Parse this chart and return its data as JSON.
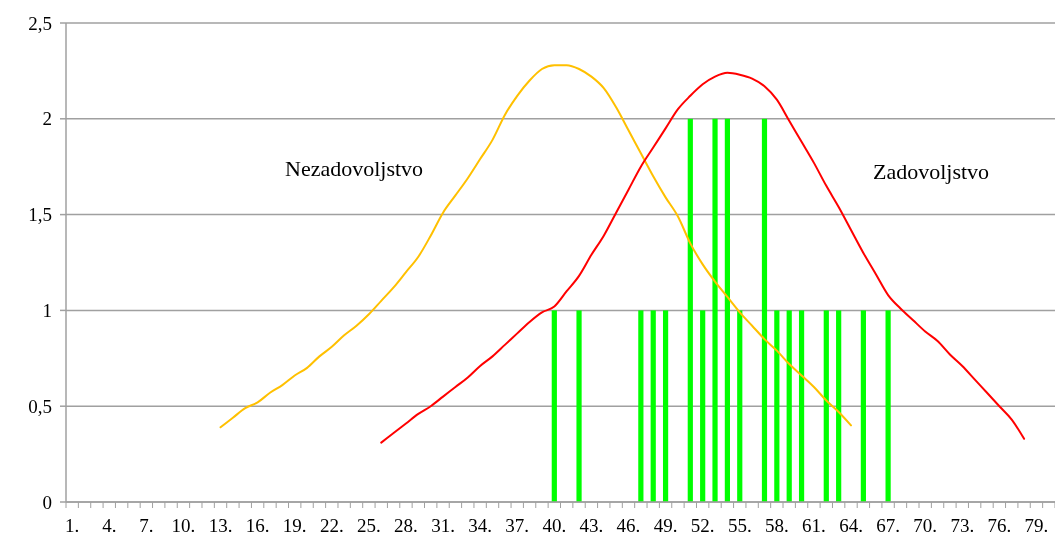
{
  "chart_data": {
    "type": "bar",
    "categories": [
      "1.",
      null,
      null,
      "4.",
      null,
      null,
      "7.",
      null,
      null,
      "10.",
      null,
      null,
      "13.",
      null,
      null,
      "16.",
      null,
      null,
      "19.",
      null,
      null,
      "22.",
      null,
      null,
      "25.",
      null,
      null,
      "28.",
      null,
      null,
      "31.",
      null,
      null,
      "34.",
      null,
      null,
      "37.",
      null,
      null,
      "40.",
      null,
      null,
      "43.",
      null,
      null,
      "46.",
      null,
      null,
      "49.",
      null,
      null,
      "52.",
      null,
      null,
      "55.",
      null,
      null,
      "58.",
      null,
      null,
      "61.",
      null,
      null,
      "64.",
      null,
      null,
      "67.",
      null,
      null,
      "70.",
      null,
      null,
      "73.",
      null,
      null,
      "76.",
      null,
      null,
      "79.",
      null
    ],
    "series": [
      {
        "color": "#00ff00",
        "values": [
          null,
          null,
          null,
          null,
          null,
          null,
          null,
          null,
          null,
          null,
          null,
          null,
          null,
          null,
          null,
          null,
          null,
          null,
          null,
          null,
          null,
          null,
          null,
          null,
          null,
          null,
          null,
          null,
          null,
          null,
          null,
          null,
          null,
          null,
          null,
          null,
          null,
          null,
          null,
          1,
          null,
          1,
          null,
          null,
          null,
          null,
          1,
          1,
          1,
          null,
          2,
          1,
          2,
          2,
          1,
          null,
          2,
          1,
          1,
          1,
          null,
          1,
          1,
          null,
          1,
          null,
          1,
          null,
          null,
          null,
          null,
          null,
          null,
          null,
          null,
          null,
          null,
          null,
          null,
          null
        ]
      },
      {
        "type": "line",
        "name": "Nezadovoljstvo",
        "color": "#ffc000",
        "values": [
          null,
          null,
          null,
          null,
          null,
          null,
          null,
          null,
          null,
          null,
          null,
          null,
          0.39,
          0.44,
          0.49,
          0.52,
          0.57,
          0.61,
          0.66,
          0.7,
          0.76,
          0.81,
          0.87,
          0.92,
          0.98,
          1.05,
          1.12,
          1.2,
          1.28,
          1.39,
          1.51,
          1.6,
          1.69,
          1.79,
          1.89,
          2.02,
          2.12,
          2.2,
          2.26,
          2.28,
          2.28,
          2.26,
          2.22,
          2.16,
          2.06,
          1.94,
          1.82,
          1.7,
          1.59,
          1.49,
          1.35,
          1.24,
          1.15,
          1.07,
          0.99,
          0.92,
          0.85,
          0.79,
          0.72,
          0.66,
          0.6,
          0.53,
          0.47,
          0.4,
          null,
          null,
          null,
          null,
          null,
          null,
          null,
          null,
          null,
          null,
          null,
          null,
          null,
          null,
          null,
          null
        ]
      },
      {
        "type": "line",
        "name": "Zadovoljstvo",
        "color": "#ff0000",
        "values": [
          null,
          null,
          null,
          null,
          null,
          null,
          null,
          null,
          null,
          null,
          null,
          null,
          null,
          null,
          null,
          null,
          null,
          null,
          null,
          null,
          null,
          null,
          null,
          null,
          null,
          0.31,
          0.36,
          0.41,
          0.46,
          0.5,
          0.55,
          0.6,
          0.65,
          0.71,
          0.76,
          0.82,
          0.88,
          0.94,
          0.99,
          1.02,
          1.1,
          1.18,
          1.29,
          1.39,
          1.51,
          1.63,
          1.75,
          1.85,
          1.95,
          2.05,
          2.12,
          2.18,
          2.22,
          2.24,
          2.23,
          2.21,
          2.17,
          2.1,
          1.99,
          1.88,
          1.77,
          1.65,
          1.54,
          1.42,
          1.3,
          1.19,
          1.08,
          1.01,
          0.95,
          0.89,
          0.84,
          0.77,
          0.71,
          0.64,
          0.57,
          0.5,
          0.43,
          0.33,
          null,
          null
        ]
      }
    ],
    "ylim": [
      0,
      2.5
    ],
    "yticks": [
      0,
      {
        "value": 0.5,
        "label": "0,5"
      },
      1,
      {
        "value": 1.5,
        "label": "1,5"
      },
      2,
      {
        "value": 2.5,
        "label": "2,5"
      }
    ],
    "grid": "y"
  }
}
